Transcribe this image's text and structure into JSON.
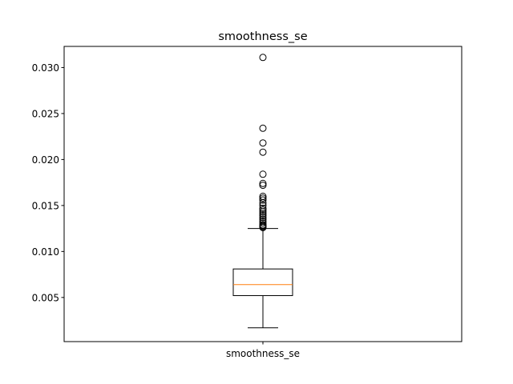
{
  "chart_data": {
    "type": "box",
    "title": "smoothness_se",
    "xlabel": "",
    "ylabel": "",
    "categories": [
      "smoothness_se"
    ],
    "ylim": [
      0.0002,
      0.0323
    ],
    "yticks": [
      0.005,
      0.01,
      0.015,
      0.02,
      0.025,
      0.03
    ],
    "ytick_labels": [
      "0.005",
      "0.010",
      "0.015",
      "0.020",
      "0.025",
      "0.030"
    ],
    "boxes": [
      {
        "name": "smoothness_se",
        "whisker_low": 0.0017,
        "q1": 0.0052,
        "median": 0.0064,
        "q3": 0.0081,
        "whisker_high": 0.0125,
        "outliers": [
          0.0311,
          0.0234,
          0.0218,
          0.0208,
          0.0184,
          0.0174,
          0.0172,
          0.016,
          0.0158,
          0.0156,
          0.0153,
          0.015,
          0.0147,
          0.0145,
          0.0143,
          0.0141,
          0.0139,
          0.0137,
          0.0135,
          0.0133,
          0.0131,
          0.0129,
          0.0128,
          0.0127,
          0.0126
        ]
      }
    ],
    "grid": false,
    "colors": {
      "box": "#000000",
      "median": "#ff7f0e",
      "outlier": "#000000"
    }
  }
}
